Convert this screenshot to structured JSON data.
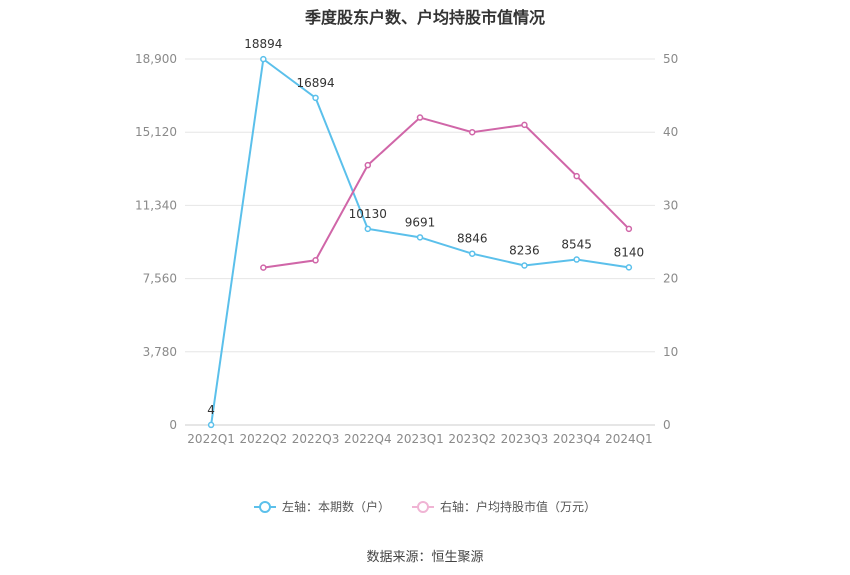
{
  "chart_data": {
    "type": "line",
    "title": "季度股东户数、户均持股市值情况",
    "categories": [
      "2022Q1",
      "2022Q2",
      "2022Q3",
      "2022Q4",
      "2023Q1",
      "2023Q2",
      "2023Q3",
      "2023Q4",
      "2024Q1"
    ],
    "series": [
      {
        "name": "左轴：本期数（户）",
        "axis": "left",
        "color": "#5bc0eb",
        "values": [
          4,
          18894,
          16894,
          10130,
          9691,
          8846,
          8236,
          8545,
          8140
        ],
        "labels": [
          "4",
          "18894",
          "16894",
          "10130",
          "9691",
          "8846",
          "8236",
          "8545",
          "8140"
        ]
      },
      {
        "name": "右轴：户均持股市值（万元）",
        "axis": "right",
        "color": "#d066a8",
        "values": [
          null,
          21.5,
          22.5,
          35.5,
          42.0,
          40.0,
          41.0,
          34.0,
          26.8
        ]
      }
    ],
    "left_axis": {
      "ticks": [
        "0",
        "3,780",
        "7,560",
        "11,340",
        "15,120",
        "18,900"
      ],
      "max": 18900
    },
    "right_axis": {
      "ticks": [
        "0",
        "10",
        "20",
        "30",
        "40",
        "50"
      ],
      "max": 50
    },
    "legend_position": "bottom",
    "grid": true
  },
  "source": "数据来源：恒生聚源"
}
